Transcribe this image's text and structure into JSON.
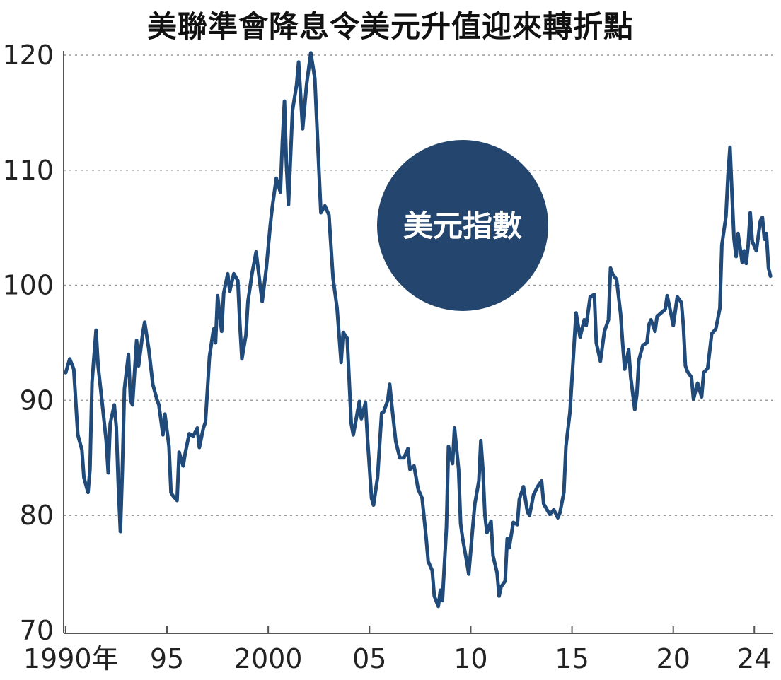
{
  "chart_data": {
    "type": "line",
    "title": "美聯準會降息令美元升值迎來轉折點",
    "series_label": "美元指數",
    "ylim": [
      70,
      120
    ],
    "yticks": [
      70,
      80,
      90,
      100,
      110,
      120
    ],
    "xlim": [
      1989.9,
      2024.9
    ],
    "xticks": [
      {
        "value": 1990,
        "label": "1990年"
      },
      {
        "value": 1995,
        "label": "95"
      },
      {
        "value": 2000,
        "label": "2000"
      },
      {
        "value": 2005,
        "label": "05"
      },
      {
        "value": 2010,
        "label": "10"
      },
      {
        "value": 2015,
        "label": "15"
      },
      {
        "value": 2020,
        "label": "20"
      },
      {
        "value": 2024,
        "label": "24"
      }
    ],
    "grid": "horizontal-dotted",
    "colors": {
      "line": "#1f4a7a",
      "badge": "#24466e",
      "grid": "#999999",
      "axis": "#555555"
    },
    "points": [
      [
        1990.0,
        92.4
      ],
      [
        1990.2,
        93.6
      ],
      [
        1990.4,
        92.7
      ],
      [
        1990.6,
        87.0
      ],
      [
        1990.8,
        85.7
      ],
      [
        1990.9,
        83.3
      ],
      [
        1991.1,
        82.0
      ],
      [
        1991.2,
        84.0
      ],
      [
        1991.3,
        91.6
      ],
      [
        1991.5,
        96.1
      ],
      [
        1991.6,
        93.0
      ],
      [
        1991.8,
        89.8
      ],
      [
        1992.0,
        86.5
      ],
      [
        1992.1,
        83.7
      ],
      [
        1992.2,
        88.0
      ],
      [
        1992.4,
        89.6
      ],
      [
        1992.5,
        87.7
      ],
      [
        1992.6,
        82.6
      ],
      [
        1992.7,
        78.6
      ],
      [
        1992.8,
        84.0
      ],
      [
        1992.9,
        91.0
      ],
      [
        1993.1,
        94.0
      ],
      [
        1993.2,
        90.0
      ],
      [
        1993.3,
        89.6
      ],
      [
        1993.5,
        95.2
      ],
      [
        1993.6,
        93.0
      ],
      [
        1993.8,
        95.8
      ],
      [
        1993.9,
        96.8
      ],
      [
        1994.1,
        94.5
      ],
      [
        1994.3,
        91.4
      ],
      [
        1994.5,
        90.1
      ],
      [
        1994.6,
        89.6
      ],
      [
        1994.8,
        87.0
      ],
      [
        1994.9,
        88.8
      ],
      [
        1995.1,
        86.0
      ],
      [
        1995.2,
        82.0
      ],
      [
        1995.3,
        81.7
      ],
      [
        1995.5,
        81.3
      ],
      [
        1995.6,
        85.5
      ],
      [
        1995.8,
        84.3
      ],
      [
        1995.9,
        85.4
      ],
      [
        1996.1,
        87.1
      ],
      [
        1996.3,
        86.9
      ],
      [
        1996.5,
        87.6
      ],
      [
        1996.6,
        85.9
      ],
      [
        1996.8,
        87.6
      ],
      [
        1996.9,
        88.1
      ],
      [
        1997.1,
        93.8
      ],
      [
        1997.3,
        96.2
      ],
      [
        1997.4,
        95.0
      ],
      [
        1997.5,
        99.1
      ],
      [
        1997.7,
        96.0
      ],
      [
        1997.8,
        99.3
      ],
      [
        1998.0,
        101.0
      ],
      [
        1998.1,
        99.5
      ],
      [
        1998.3,
        101.0
      ],
      [
        1998.5,
        100.4
      ],
      [
        1998.6,
        96.6
      ],
      [
        1998.7,
        93.6
      ],
      [
        1998.9,
        95.7
      ],
      [
        1999.0,
        98.6
      ],
      [
        1999.2,
        101.0
      ],
      [
        1999.4,
        102.9
      ],
      [
        1999.6,
        100.0
      ],
      [
        1999.7,
        98.6
      ],
      [
        1999.9,
        101.4
      ],
      [
        2000.1,
        105.2
      ],
      [
        2000.2,
        106.8
      ],
      [
        2000.4,
        109.3
      ],
      [
        2000.6,
        108.1
      ],
      [
        2000.7,
        112.5
      ],
      [
        2000.8,
        116.0
      ],
      [
        2000.9,
        110.5
      ],
      [
        2001.0,
        107.0
      ],
      [
        2001.2,
        115.2
      ],
      [
        2001.4,
        117.4
      ],
      [
        2001.5,
        119.4
      ],
      [
        2001.7,
        113.6
      ],
      [
        2001.9,
        117.5
      ],
      [
        2002.1,
        120.2
      ],
      [
        2002.3,
        118.0
      ],
      [
        2002.5,
        110.2
      ],
      [
        2002.6,
        106.3
      ],
      [
        2002.8,
        106.9
      ],
      [
        2003.0,
        106.1
      ],
      [
        2003.2,
        100.6
      ],
      [
        2003.4,
        98.0
      ],
      [
        2003.6,
        93.3
      ],
      [
        2003.7,
        95.9
      ],
      [
        2003.9,
        95.4
      ],
      [
        2004.1,
        88.0
      ],
      [
        2004.2,
        87.0
      ],
      [
        2004.5,
        89.9
      ],
      [
        2004.6,
        88.4
      ],
      [
        2004.8,
        89.8
      ],
      [
        2004.9,
        86.8
      ],
      [
        2005.1,
        81.5
      ],
      [
        2005.2,
        80.9
      ],
      [
        2005.4,
        83.3
      ],
      [
        2005.6,
        88.9
      ],
      [
        2005.7,
        89.0
      ],
      [
        2005.9,
        90.0
      ],
      [
        2006.0,
        91.4
      ],
      [
        2006.1,
        89.6
      ],
      [
        2006.3,
        86.4
      ],
      [
        2006.5,
        85.0
      ],
      [
        2006.7,
        85.0
      ],
      [
        2006.9,
        85.8
      ],
      [
        2007.0,
        84.0
      ],
      [
        2007.2,
        84.3
      ],
      [
        2007.4,
        82.3
      ],
      [
        2007.6,
        81.5
      ],
      [
        2007.8,
        78.0
      ],
      [
        2007.9,
        76.0
      ],
      [
        2008.1,
        75.2
      ],
      [
        2008.2,
        73.0
      ],
      [
        2008.4,
        72.1
      ],
      [
        2008.5,
        73.5
      ],
      [
        2008.6,
        72.6
      ],
      [
        2008.8,
        79.0
      ],
      [
        2008.9,
        86.0
      ],
      [
        2009.1,
        84.5
      ],
      [
        2009.2,
        87.6
      ],
      [
        2009.4,
        84.0
      ],
      [
        2009.5,
        79.3
      ],
      [
        2009.6,
        78.0
      ],
      [
        2009.8,
        76.0
      ],
      [
        2009.9,
        74.9
      ],
      [
        2010.1,
        79.0
      ],
      [
        2010.2,
        81.0
      ],
      [
        2010.4,
        83.0
      ],
      [
        2010.5,
        86.5
      ],
      [
        2010.6,
        84.0
      ],
      [
        2010.7,
        80.0
      ],
      [
        2010.8,
        78.5
      ],
      [
        2011.0,
        79.5
      ],
      [
        2011.1,
        76.5
      ],
      [
        2011.3,
        75.0
      ],
      [
        2011.4,
        73.0
      ],
      [
        2011.5,
        73.8
      ],
      [
        2011.7,
        74.3
      ],
      [
        2011.8,
        78.0
      ],
      [
        2011.9,
        77.2
      ],
      [
        2012.1,
        79.4
      ],
      [
        2012.3,
        79.2
      ],
      [
        2012.4,
        81.4
      ],
      [
        2012.6,
        82.5
      ],
      [
        2012.8,
        80.3
      ],
      [
        2012.9,
        80.0
      ],
      [
        2013.1,
        81.8
      ],
      [
        2013.3,
        82.5
      ],
      [
        2013.5,
        83.0
      ],
      [
        2013.6,
        81.0
      ],
      [
        2013.8,
        80.4
      ],
      [
        2013.9,
        80.1
      ],
      [
        2014.1,
        80.5
      ],
      [
        2014.3,
        79.8
      ],
      [
        2014.4,
        80.2
      ],
      [
        2014.6,
        82.0
      ],
      [
        2014.7,
        86.0
      ],
      [
        2014.9,
        89.0
      ],
      [
        2015.1,
        94.7
      ],
      [
        2015.2,
        97.6
      ],
      [
        2015.4,
        95.5
      ],
      [
        2015.6,
        97.0
      ],
      [
        2015.7,
        96.5
      ],
      [
        2015.9,
        99.0
      ],
      [
        2016.1,
        99.2
      ],
      [
        2016.2,
        95.0
      ],
      [
        2016.4,
        93.4
      ],
      [
        2016.6,
        96.0
      ],
      [
        2016.8,
        97.0
      ],
      [
        2016.9,
        101.5
      ],
      [
        2017.0,
        101.0
      ],
      [
        2017.2,
        100.5
      ],
      [
        2017.4,
        97.5
      ],
      [
        2017.5,
        95.0
      ],
      [
        2017.6,
        92.7
      ],
      [
        2017.8,
        94.4
      ],
      [
        2017.9,
        92.0
      ],
      [
        2018.1,
        89.2
      ],
      [
        2018.2,
        90.5
      ],
      [
        2018.3,
        93.5
      ],
      [
        2018.5,
        94.8
      ],
      [
        2018.7,
        95.0
      ],
      [
        2018.8,
        96.6
      ],
      [
        2018.9,
        97.0
      ],
      [
        2019.1,
        96.0
      ],
      [
        2019.2,
        97.3
      ],
      [
        2019.4,
        97.6
      ],
      [
        2019.6,
        97.9
      ],
      [
        2019.7,
        99.1
      ],
      [
        2019.9,
        97.4
      ],
      [
        2020.0,
        96.5
      ],
      [
        2020.2,
        99.0
      ],
      [
        2020.4,
        98.5
      ],
      [
        2020.5,
        96.5
      ],
      [
        2020.6,
        93.0
      ],
      [
        2020.7,
        92.5
      ],
      [
        2020.9,
        92.0
      ],
      [
        2021.0,
        90.1
      ],
      [
        2021.2,
        91.5
      ],
      [
        2021.4,
        90.3
      ],
      [
        2021.5,
        92.4
      ],
      [
        2021.7,
        92.8
      ],
      [
        2021.9,
        95.8
      ],
      [
        2022.1,
        96.2
      ],
      [
        2022.3,
        98.0
      ],
      [
        2022.4,
        103.5
      ],
      [
        2022.6,
        106.0
      ],
      [
        2022.7,
        109.5
      ],
      [
        2022.8,
        112.0
      ],
      [
        2022.9,
        108.0
      ],
      [
        2023.0,
        104.0
      ],
      [
        2023.1,
        102.5
      ],
      [
        2023.2,
        104.5
      ],
      [
        2023.4,
        102.0
      ],
      [
        2023.5,
        103.0
      ],
      [
        2023.6,
        101.9
      ],
      [
        2023.7,
        103.5
      ],
      [
        2023.8,
        106.3
      ],
      [
        2023.9,
        103.8
      ],
      [
        2024.1,
        103.0
      ],
      [
        2024.3,
        105.6
      ],
      [
        2024.4,
        105.9
      ],
      [
        2024.5,
        104.0
      ],
      [
        2024.6,
        104.5
      ],
      [
        2024.7,
        101.5
      ],
      [
        2024.8,
        100.8
      ]
    ]
  }
}
